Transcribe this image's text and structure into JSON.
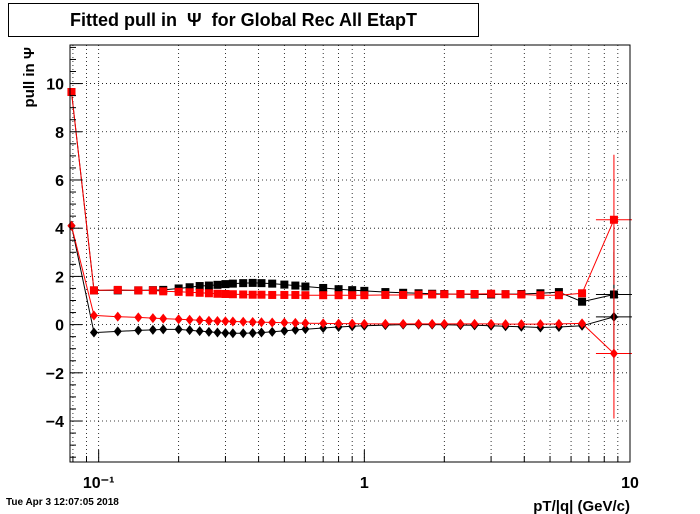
{
  "title": "Fitted pull in  Ψ  for Global Rec All EtapT",
  "timestamp": "Tue Apr  3 12:07:05 2018",
  "chart_data": {
    "type": "scatter",
    "title": "Fitted pull in  Ψ  for Global Rec All EtapT",
    "xlabel": "pT/|q| (GeV/c)",
    "ylabel": "pull in  Ψ",
    "xscale": "log",
    "xlim": [
      0.078,
      10
    ],
    "ylim": [
      -5.7,
      11.6
    ],
    "grid": true,
    "x_tick_labels": [
      "10⁻¹",
      "1",
      "10"
    ],
    "y_tick_labels": [
      "−4",
      "−2",
      "0",
      "2",
      "4",
      "6",
      "8",
      "10"
    ],
    "colors": {
      "black": "#000000",
      "red": "#ff0000"
    },
    "series": [
      {
        "color": "#000000",
        "marker": "square",
        "points": [
          [
            0.079,
            9.65
          ],
          [
            0.096,
            1.42
          ],
          [
            0.118,
            1.42
          ],
          [
            0.141,
            1.42
          ],
          [
            0.16,
            1.43
          ],
          [
            0.175,
            1.44
          ],
          [
            0.2,
            1.5
          ],
          [
            0.22,
            1.55
          ],
          [
            0.24,
            1.6
          ],
          [
            0.26,
            1.62
          ],
          [
            0.28,
            1.65
          ],
          [
            0.3,
            1.68
          ],
          [
            0.32,
            1.7
          ],
          [
            0.35,
            1.72
          ],
          [
            0.38,
            1.73
          ],
          [
            0.41,
            1.72
          ],
          [
            0.45,
            1.7
          ],
          [
            0.5,
            1.66
          ],
          [
            0.55,
            1.62
          ],
          [
            0.6,
            1.58
          ],
          [
            0.7,
            1.52
          ],
          [
            0.8,
            1.47
          ],
          [
            0.9,
            1.43
          ],
          [
            1.0,
            1.4
          ],
          [
            1.2,
            1.35
          ],
          [
            1.4,
            1.32
          ],
          [
            1.6,
            1.3
          ],
          [
            1.8,
            1.28
          ],
          [
            2.0,
            1.27
          ],
          [
            2.3,
            1.26
          ],
          [
            2.6,
            1.25
          ],
          [
            3.0,
            1.25
          ],
          [
            3.4,
            1.26
          ],
          [
            3.9,
            1.27
          ],
          [
            4.6,
            1.3
          ],
          [
            5.4,
            1.35
          ],
          [
            6.6,
            0.95
          ],
          [
            8.7,
            1.25
          ]
        ]
      },
      {
        "color": "#ff0000",
        "marker": "square",
        "points": [
          [
            0.079,
            9.65
          ],
          [
            0.096,
            1.42
          ],
          [
            0.118,
            1.44
          ],
          [
            0.141,
            1.42
          ],
          [
            0.16,
            1.42
          ],
          [
            0.175,
            1.38
          ],
          [
            0.2,
            1.36
          ],
          [
            0.22,
            1.34
          ],
          [
            0.24,
            1.32
          ],
          [
            0.26,
            1.3
          ],
          [
            0.28,
            1.28
          ],
          [
            0.3,
            1.27
          ],
          [
            0.32,
            1.26
          ],
          [
            0.35,
            1.25
          ],
          [
            0.38,
            1.24
          ],
          [
            0.41,
            1.24
          ],
          [
            0.45,
            1.23
          ],
          [
            0.5,
            1.23
          ],
          [
            0.55,
            1.23
          ],
          [
            0.6,
            1.22
          ],
          [
            0.7,
            1.22
          ],
          [
            0.8,
            1.22
          ],
          [
            0.9,
            1.22
          ],
          [
            1.0,
            1.22
          ],
          [
            1.2,
            1.23
          ],
          [
            1.4,
            1.23
          ],
          [
            1.6,
            1.24
          ],
          [
            1.8,
            1.25
          ],
          [
            2.0,
            1.26
          ],
          [
            2.3,
            1.27
          ],
          [
            2.6,
            1.27
          ],
          [
            3.0,
            1.28
          ],
          [
            3.4,
            1.26
          ],
          [
            3.9,
            1.25
          ],
          [
            4.6,
            1.22
          ],
          [
            5.4,
            1.22
          ],
          [
            6.6,
            1.3
          ],
          [
            8.7,
            4.35
          ]
        ]
      },
      {
        "color": "#000000",
        "marker": "diamond",
        "points": [
          [
            0.079,
            4.1
          ],
          [
            0.096,
            -0.33
          ],
          [
            0.118,
            -0.28
          ],
          [
            0.141,
            -0.24
          ],
          [
            0.16,
            -0.22
          ],
          [
            0.175,
            -0.2
          ],
          [
            0.2,
            -0.2
          ],
          [
            0.22,
            -0.23
          ],
          [
            0.24,
            -0.27
          ],
          [
            0.26,
            -0.3
          ],
          [
            0.28,
            -0.33
          ],
          [
            0.3,
            -0.35
          ],
          [
            0.32,
            -0.36
          ],
          [
            0.35,
            -0.36
          ],
          [
            0.38,
            -0.35
          ],
          [
            0.41,
            -0.33
          ],
          [
            0.45,
            -0.3
          ],
          [
            0.5,
            -0.26
          ],
          [
            0.55,
            -0.22
          ],
          [
            0.6,
            -0.19
          ],
          [
            0.7,
            -0.14
          ],
          [
            0.8,
            -0.1
          ],
          [
            0.9,
            -0.07
          ],
          [
            1.0,
            -0.05
          ],
          [
            1.2,
            -0.02
          ],
          [
            1.4,
            0.0
          ],
          [
            1.6,
            0.0
          ],
          [
            1.8,
            0.0
          ],
          [
            2.0,
            -0.01
          ],
          [
            2.3,
            -0.02
          ],
          [
            2.6,
            -0.03
          ],
          [
            3.0,
            -0.05
          ],
          [
            3.4,
            -0.07
          ],
          [
            3.9,
            -0.09
          ],
          [
            4.6,
            -0.12
          ],
          [
            5.4,
            -0.1
          ],
          [
            6.6,
            -0.05
          ],
          [
            8.7,
            0.32
          ]
        ]
      },
      {
        "color": "#ff0000",
        "marker": "diamond",
        "points": [
          [
            0.079,
            4.1
          ],
          [
            0.096,
            0.38
          ],
          [
            0.118,
            0.33
          ],
          [
            0.141,
            0.3
          ],
          [
            0.16,
            0.27
          ],
          [
            0.175,
            0.25
          ],
          [
            0.2,
            0.22
          ],
          [
            0.22,
            0.2
          ],
          [
            0.24,
            0.18
          ],
          [
            0.26,
            0.16
          ],
          [
            0.28,
            0.15
          ],
          [
            0.3,
            0.14
          ],
          [
            0.32,
            0.13
          ],
          [
            0.35,
            0.12
          ],
          [
            0.38,
            0.11
          ],
          [
            0.41,
            0.1
          ],
          [
            0.45,
            0.09
          ],
          [
            0.5,
            0.08
          ],
          [
            0.55,
            0.07
          ],
          [
            0.6,
            0.06
          ],
          [
            0.7,
            0.05
          ],
          [
            0.8,
            0.04
          ],
          [
            0.9,
            0.04
          ],
          [
            1.0,
            0.03
          ],
          [
            1.2,
            0.03
          ],
          [
            1.4,
            0.03
          ],
          [
            1.6,
            0.03
          ],
          [
            1.8,
            0.03
          ],
          [
            2.0,
            0.03
          ],
          [
            2.3,
            0.03
          ],
          [
            2.6,
            0.03
          ],
          [
            3.0,
            0.03
          ],
          [
            3.4,
            0.02
          ],
          [
            3.9,
            0.02
          ],
          [
            4.6,
            0.02
          ],
          [
            5.4,
            0.03
          ],
          [
            6.6,
            0.05
          ],
          [
            8.7,
            -1.2
          ]
        ]
      }
    ]
  }
}
